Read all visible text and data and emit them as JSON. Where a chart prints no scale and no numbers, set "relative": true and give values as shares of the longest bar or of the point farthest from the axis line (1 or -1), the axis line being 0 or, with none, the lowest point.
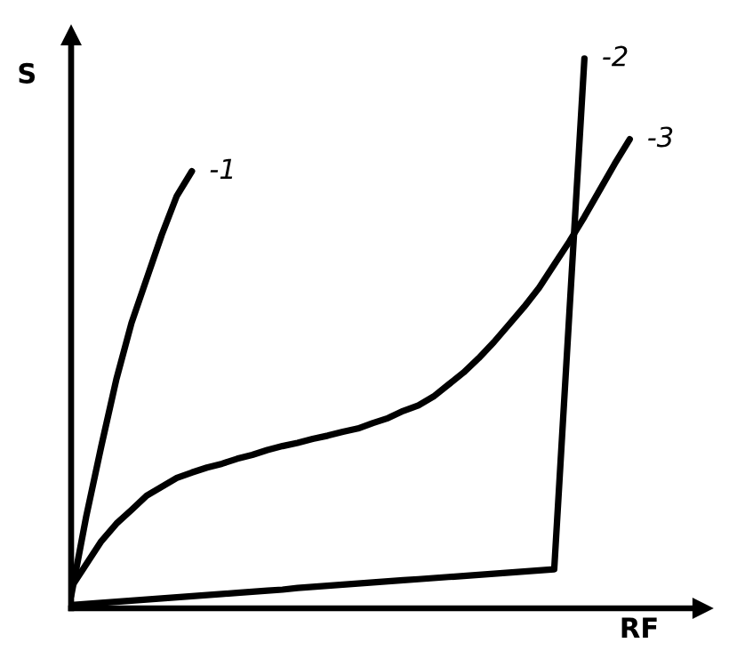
{
  "chart_data": {
    "type": "line",
    "relative": true,
    "xlabel": "RF",
    "ylabel": "S",
    "legend": false,
    "marker": "none",
    "line_style": "solid",
    "categories": [
      null,
      null,
      null,
      null,
      null,
      null,
      null,
      null,
      null,
      null,
      null,
      null,
      null,
      null,
      null,
      null,
      null,
      null,
      null,
      null,
      null,
      null,
      null,
      null,
      null,
      null,
      null,
      null,
      null,
      null,
      null,
      null,
      null,
      null,
      null,
      null,
      null,
      null
    ],
    "series": [
      {
        "name": "-1",
        "color": "#000000",
        "values": [
          0.022,
          0.167,
          0.295,
          0.417,
          0.519,
          0.599,
          0.679,
          0.75,
          0.795,
          null,
          null,
          null,
          null,
          null,
          null,
          null,
          null,
          null,
          null,
          null,
          null,
          null,
          null,
          null,
          null,
          null,
          null,
          null,
          null,
          null,
          null,
          null,
          null,
          null,
          null,
          null,
          null,
          null
        ]
      },
      {
        "name": "-2",
        "color": "#000000",
        "values": [
          0.006,
          0.008,
          0.01,
          0.012,
          0.014,
          0.016,
          0.018,
          0.02,
          0.022,
          0.024,
          0.026,
          0.028,
          0.03,
          0.032,
          0.034,
          0.037,
          0.039,
          0.041,
          0.043,
          0.045,
          0.047,
          0.049,
          0.051,
          0.053,
          0.055,
          0.057,
          0.059,
          0.061,
          0.063,
          0.065,
          0.067,
          0.069,
          0.071,
          0.536,
          1.0,
          null,
          null,
          null
        ]
      },
      {
        "name": "-3",
        "color": "#000000",
        "values": [
          0.038,
          0.08,
          0.122,
          0.154,
          0.179,
          0.205,
          0.221,
          0.237,
          0.247,
          0.256,
          0.263,
          0.272,
          0.279,
          0.288,
          0.295,
          0.301,
          0.308,
          0.314,
          0.321,
          0.327,
          0.337,
          0.346,
          0.359,
          0.369,
          0.385,
          0.407,
          0.429,
          0.455,
          0.484,
          0.516,
          0.548,
          0.583,
          0.625,
          0.667,
          0.712,
          0.76,
          0.808,
          0.853
        ]
      }
    ]
  }
}
